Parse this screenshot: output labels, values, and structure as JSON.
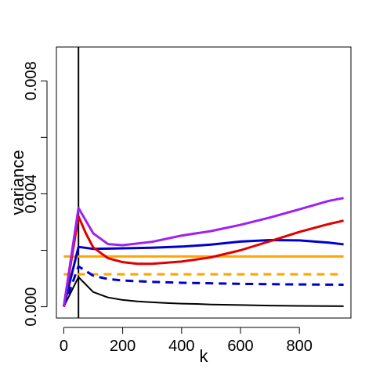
{
  "chart_data": {
    "type": "line",
    "title": "",
    "xlabel": "k",
    "ylabel": "variance",
    "xlim": [
      -25,
      975
    ],
    "ylim": [
      -0.0004,
      0.0092
    ],
    "x_ticks": [
      {
        "value": 0,
        "label": "0"
      },
      {
        "value": 200,
        "label": "200"
      },
      {
        "value": 400,
        "label": "400"
      },
      {
        "value": 600,
        "label": "600"
      },
      {
        "value": 800,
        "label": "800"
      }
    ],
    "y_ticks": [
      {
        "value": 0.0,
        "label": "0.000"
      },
      {
        "value": 0.002,
        "label": ""
      },
      {
        "value": 0.004,
        "label": "0.004"
      },
      {
        "value": 0.006,
        "label": ""
      },
      {
        "value": 0.008,
        "label": "0.008"
      }
    ],
    "grid": false,
    "legend": "none",
    "vertical_lines": [
      {
        "x": 50,
        "color": "#000000",
        "width": 2
      }
    ],
    "series": [
      {
        "color": "#000000",
        "dash": "solid",
        "width": 2,
        "x": [
          0,
          50,
          100,
          150,
          200,
          250,
          300,
          350,
          400,
          450,
          500,
          600,
          700,
          800,
          950
        ],
        "y": [
          0.0,
          0.00105,
          0.00052,
          0.00033,
          0.00024,
          0.00019,
          0.00016,
          0.00013,
          0.00011,
          0.0001,
          8e-05,
          6e-05,
          4e-05,
          3e-05,
          2e-05
        ]
      },
      {
        "color": "#FFA500",
        "dash": "solid",
        "width": 3,
        "x": [
          0,
          950
        ],
        "y": [
          0.00178,
          0.00178
        ]
      },
      {
        "color": "#FFA500",
        "dash": "dashed",
        "width": 3,
        "x": [
          0,
          950
        ],
        "y": [
          0.00115,
          0.00115
        ]
      },
      {
        "color": "#0000CD",
        "dash": "dashed",
        "width": 3,
        "x": [
          0,
          50,
          100,
          150,
          200,
          300,
          400,
          500,
          600,
          700,
          800,
          950
        ],
        "y": [
          0.0,
          0.00143,
          0.0011,
          0.00098,
          0.00093,
          0.00088,
          0.00085,
          0.00083,
          0.00081,
          0.0008,
          0.00079,
          0.00078
        ]
      },
      {
        "color": "#0000CD",
        "dash": "solid",
        "width": 3,
        "x": [
          0,
          50,
          100,
          150,
          200,
          300,
          400,
          500,
          600,
          700,
          800,
          900,
          950
        ],
        "y": [
          0.0,
          0.00212,
          0.00205,
          0.00206,
          0.00207,
          0.00209,
          0.00213,
          0.0022,
          0.00231,
          0.00236,
          0.00235,
          0.00227,
          0.00221
        ]
      },
      {
        "color": "#E00000",
        "dash": "solid",
        "width": 3,
        "x": [
          0,
          50,
          75,
          100,
          150,
          200,
          250,
          300,
          400,
          500,
          600,
          700,
          800,
          900,
          950
        ],
        "y": [
          0.0,
          0.0032,
          0.0026,
          0.0021,
          0.00172,
          0.00158,
          0.00152,
          0.00152,
          0.0016,
          0.00175,
          0.002,
          0.00232,
          0.00265,
          0.00293,
          0.00305
        ]
      },
      {
        "color": "#A020F0",
        "dash": "solid",
        "width": 3,
        "x": [
          0,
          50,
          100,
          150,
          200,
          300,
          400,
          500,
          600,
          700,
          800,
          900,
          950
        ],
        "y": [
          0.0,
          0.0035,
          0.0026,
          0.00222,
          0.00218,
          0.0023,
          0.00252,
          0.00268,
          0.0029,
          0.00316,
          0.00345,
          0.00375,
          0.00385
        ]
      }
    ]
  }
}
